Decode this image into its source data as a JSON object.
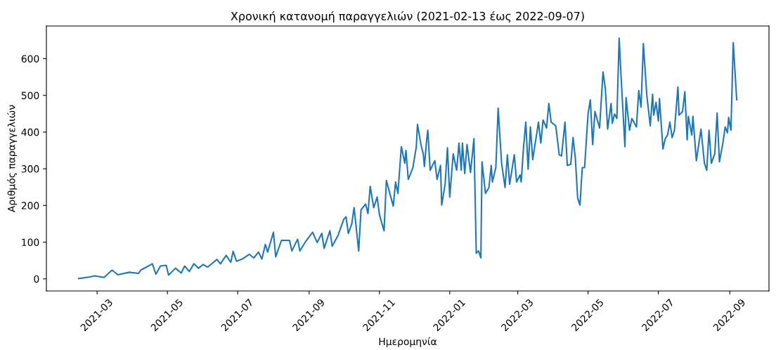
{
  "chart_data": {
    "type": "line",
    "title": "Χρονική κατανομή παραγγελιών (2021-02-13 έως 2022-09-07)",
    "xlabel": "Ημερομηνία",
    "ylabel": "Αριθμός παραγγελιών",
    "x": [
      "2021-02-13",
      "2021-02-22",
      "2021-02-27",
      "2021-03-07",
      "2021-03-14",
      "2021-03-19",
      "2021-03-29",
      "2021-04-06",
      "2021-04-08",
      "2021-04-18",
      "2021-04-21",
      "2021-04-25",
      "2021-04-30",
      "2021-05-02",
      "2021-05-08",
      "2021-05-13",
      "2021-05-16",
      "2021-05-20",
      "2021-05-24",
      "2021-05-28",
      "2021-06-01",
      "2021-06-05",
      "2021-06-13",
      "2021-06-16",
      "2021-06-21",
      "2021-06-25",
      "2021-06-27",
      "2021-06-30",
      "2021-07-05",
      "2021-07-11",
      "2021-07-15",
      "2021-07-19",
      "2021-07-22",
      "2021-07-25",
      "2021-07-27",
      "2021-08-01",
      "2021-08-03",
      "2021-08-08",
      "2021-08-15",
      "2021-08-17",
      "2021-08-22",
      "2021-08-24",
      "2021-08-29",
      "2021-09-04",
      "2021-09-08",
      "2021-09-12",
      "2021-09-14",
      "2021-09-19",
      "2021-09-21",
      "2021-09-26",
      "2021-10-01",
      "2021-10-03",
      "2021-10-05",
      "2021-10-08",
      "2021-10-10",
      "2021-10-14",
      "2021-10-16",
      "2021-10-20",
      "2021-10-22",
      "2021-10-24",
      "2021-10-27",
      "2021-10-30",
      "2021-11-01",
      "2021-11-05",
      "2021-11-07",
      "2021-11-10",
      "2021-11-13",
      "2021-11-15",
      "2021-11-17",
      "2021-11-20",
      "2021-11-23",
      "2021-11-24",
      "2021-11-26",
      "2021-11-30",
      "2021-12-03",
      "2021-12-04",
      "2021-12-07",
      "2021-12-09",
      "2021-12-10",
      "2021-12-12",
      "2021-12-13",
      "2021-12-15",
      "2021-12-19",
      "2021-12-21",
      "2021-12-24",
      "2021-12-25",
      "2021-12-28",
      "2021-12-30",
      "2022-01-01",
      "2022-01-04",
      "2022-01-07",
      "2022-01-09",
      "2022-01-11",
      "2022-01-12",
      "2022-01-14",
      "2022-01-16",
      "2022-01-19",
      "2022-01-22",
      "2022-01-24",
      "2022-01-26",
      "2022-01-28",
      "2022-01-29",
      "2022-02-01",
      "2022-02-04",
      "2022-02-06",
      "2022-02-07",
      "2022-02-10",
      "2022-02-12",
      "2022-02-15",
      "2022-02-18",
      "2022-02-20",
      "2022-02-22",
      "2022-02-26",
      "2022-02-28",
      "2022-03-03",
      "2022-03-04",
      "2022-03-06",
      "2022-03-08",
      "2022-03-10",
      "2022-03-12",
      "2022-03-14",
      "2022-03-19",
      "2022-03-21",
      "2022-03-23",
      "2022-03-26",
      "2022-03-28",
      "2022-03-30",
      "2022-04-03",
      "2022-04-06",
      "2022-04-08",
      "2022-04-11",
      "2022-04-13",
      "2022-04-16",
      "2022-04-18",
      "2022-04-20",
      "2022-04-22",
      "2022-04-24",
      "2022-04-26",
      "2022-04-28",
      "2022-05-01",
      "2022-05-03",
      "2022-05-05",
      "2022-05-07",
      "2022-05-11",
      "2022-05-14",
      "2022-05-16",
      "2022-05-18",
      "2022-05-21",
      "2022-05-22",
      "2022-05-24",
      "2022-05-26",
      "2022-05-28",
      "2022-05-30",
      "2022-06-02",
      "2022-06-03",
      "2022-06-06",
      "2022-06-08",
      "2022-06-12",
      "2022-06-14",
      "2022-06-16",
      "2022-06-18",
      "2022-06-21",
      "2022-06-24",
      "2022-06-26",
      "2022-06-27",
      "2022-06-29",
      "2022-07-01",
      "2022-07-02",
      "2022-07-05",
      "2022-07-07",
      "2022-07-09",
      "2022-07-11",
      "2022-07-13",
      "2022-07-15",
      "2022-07-18",
      "2022-07-19",
      "2022-07-22",
      "2022-07-24",
      "2022-07-26",
      "2022-07-27",
      "2022-07-30",
      "2022-07-31",
      "2022-08-03",
      "2022-08-07",
      "2022-08-10",
      "2022-08-12",
      "2022-08-14",
      "2022-08-16",
      "2022-08-19",
      "2022-08-21",
      "2022-08-23",
      "2022-08-26",
      "2022-08-28",
      "2022-08-30",
      "2022-08-31",
      "2022-09-02",
      "2022-09-04",
      "2022-09-07"
    ],
    "series": [
      {
        "color": "#1f77b4",
        "values": [
          1,
          5,
          8,
          4,
          24,
          11,
          18,
          15,
          24,
          41,
          13,
          35,
          37,
          10,
          29,
          16,
          35,
          20,
          41,
          29,
          39,
          32,
          53,
          41,
          64,
          45,
          75,
          48,
          54,
          67,
          57,
          73,
          54,
          94,
          73,
          127,
          60,
          105,
          105,
          76,
          108,
          76,
          102,
          127,
          99,
          124,
          83,
          131,
          89,
          118,
          162,
          169,
          124,
          150,
          194,
          76,
          188,
          204,
          178,
          252,
          194,
          223,
          175,
          131,
          268,
          233,
          198,
          264,
          233,
          360,
          315,
          350,
          271,
          303,
          360,
          421,
          366,
          341,
          306,
          379,
          405,
          296,
          322,
          271,
          309,
          201,
          258,
          357,
          223,
          341,
          296,
          370,
          296,
          370,
          287,
          366,
          290,
          382,
          70,
          76,
          57,
          319,
          233,
          249,
          309,
          264,
          303,
          465,
          315,
          249,
          338,
          258,
          338,
          264,
          283,
          264,
          357,
          427,
          299,
          414,
          325,
          427,
          370,
          433,
          411,
          478,
          427,
          417,
          338,
          335,
          427,
          309,
          312,
          385,
          328,
          220,
          201,
          303,
          303,
          449,
          488,
          366,
          456,
          411,
          564,
          519,
          408,
          478,
          424,
          449,
          437,
          656,
          532,
          360,
          494,
          405,
          437,
          414,
          513,
          468,
          641,
          500,
          417,
          503,
          446,
          481,
          430,
          491,
          354,
          382,
          392,
          427,
          385,
          405,
          523,
          446,
          456,
          510,
          379,
          443,
          392,
          443,
          322,
          408,
          315,
          296,
          405,
          315,
          341,
          452,
          319,
          370,
          414,
          398,
          440,
          405,
          644,
          488
        ]
      }
    ],
    "xlim": [
      "2021-01-16",
      "2022-10-05"
    ],
    "ylim": [
      -33,
      689
    ],
    "xticks": [
      {
        "value": "2021-03-01",
        "label": "2021-03"
      },
      {
        "value": "2021-05-01",
        "label": "2021-05"
      },
      {
        "value": "2021-07-01",
        "label": "2021-07"
      },
      {
        "value": "2021-09-01",
        "label": "2021-09"
      },
      {
        "value": "2021-11-01",
        "label": "2021-11"
      },
      {
        "value": "2022-01-01",
        "label": "2022-01"
      },
      {
        "value": "2022-03-01",
        "label": "2022-03"
      },
      {
        "value": "2022-05-01",
        "label": "2022-05"
      },
      {
        "value": "2022-07-01",
        "label": "2022-07"
      },
      {
        "value": "2022-09-01",
        "label": "2022-09"
      }
    ],
    "yticks": [
      0,
      100,
      200,
      300,
      400,
      500,
      600
    ],
    "grid": false,
    "legend": false,
    "marker": "none",
    "line_style": "solid"
  }
}
